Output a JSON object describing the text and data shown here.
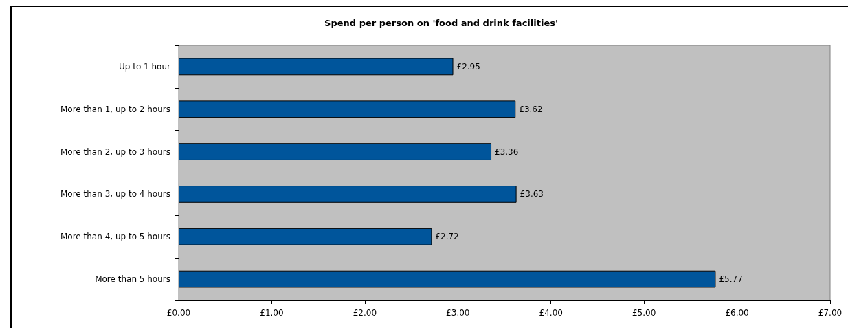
{
  "chart_data": {
    "type": "bar",
    "orientation": "horizontal",
    "title": "Spend per person on 'food and drink facilities'",
    "categories": [
      "Up to 1 hour",
      "More than 1, up to 2 hours",
      "More than 2, up to 3 hours",
      "More than 3, up to 4 hours",
      "More than 4, up to 5 hours",
      "More than 5 hours"
    ],
    "values": [
      2.95,
      3.62,
      3.36,
      3.63,
      2.72,
      5.77
    ],
    "value_labels": [
      "£2.95",
      "£3.62",
      "£3.36",
      "£3.63",
      "£2.72",
      "£5.77"
    ],
    "color": "#00559b",
    "xlim": [
      0,
      7
    ],
    "xticks": [
      {
        "value": 0,
        "label": "£0.00"
      },
      {
        "value": 1,
        "label": "£1.00"
      },
      {
        "value": 2,
        "label": "£2.00"
      },
      {
        "value": 3,
        "label": "£3.00"
      },
      {
        "value": 4,
        "label": "£4.00"
      },
      {
        "value": 5,
        "label": "£5.00"
      },
      {
        "value": 6,
        "label": "£6.00"
      },
      {
        "value": 7,
        "label": "£7.00"
      }
    ],
    "grid": false
  }
}
